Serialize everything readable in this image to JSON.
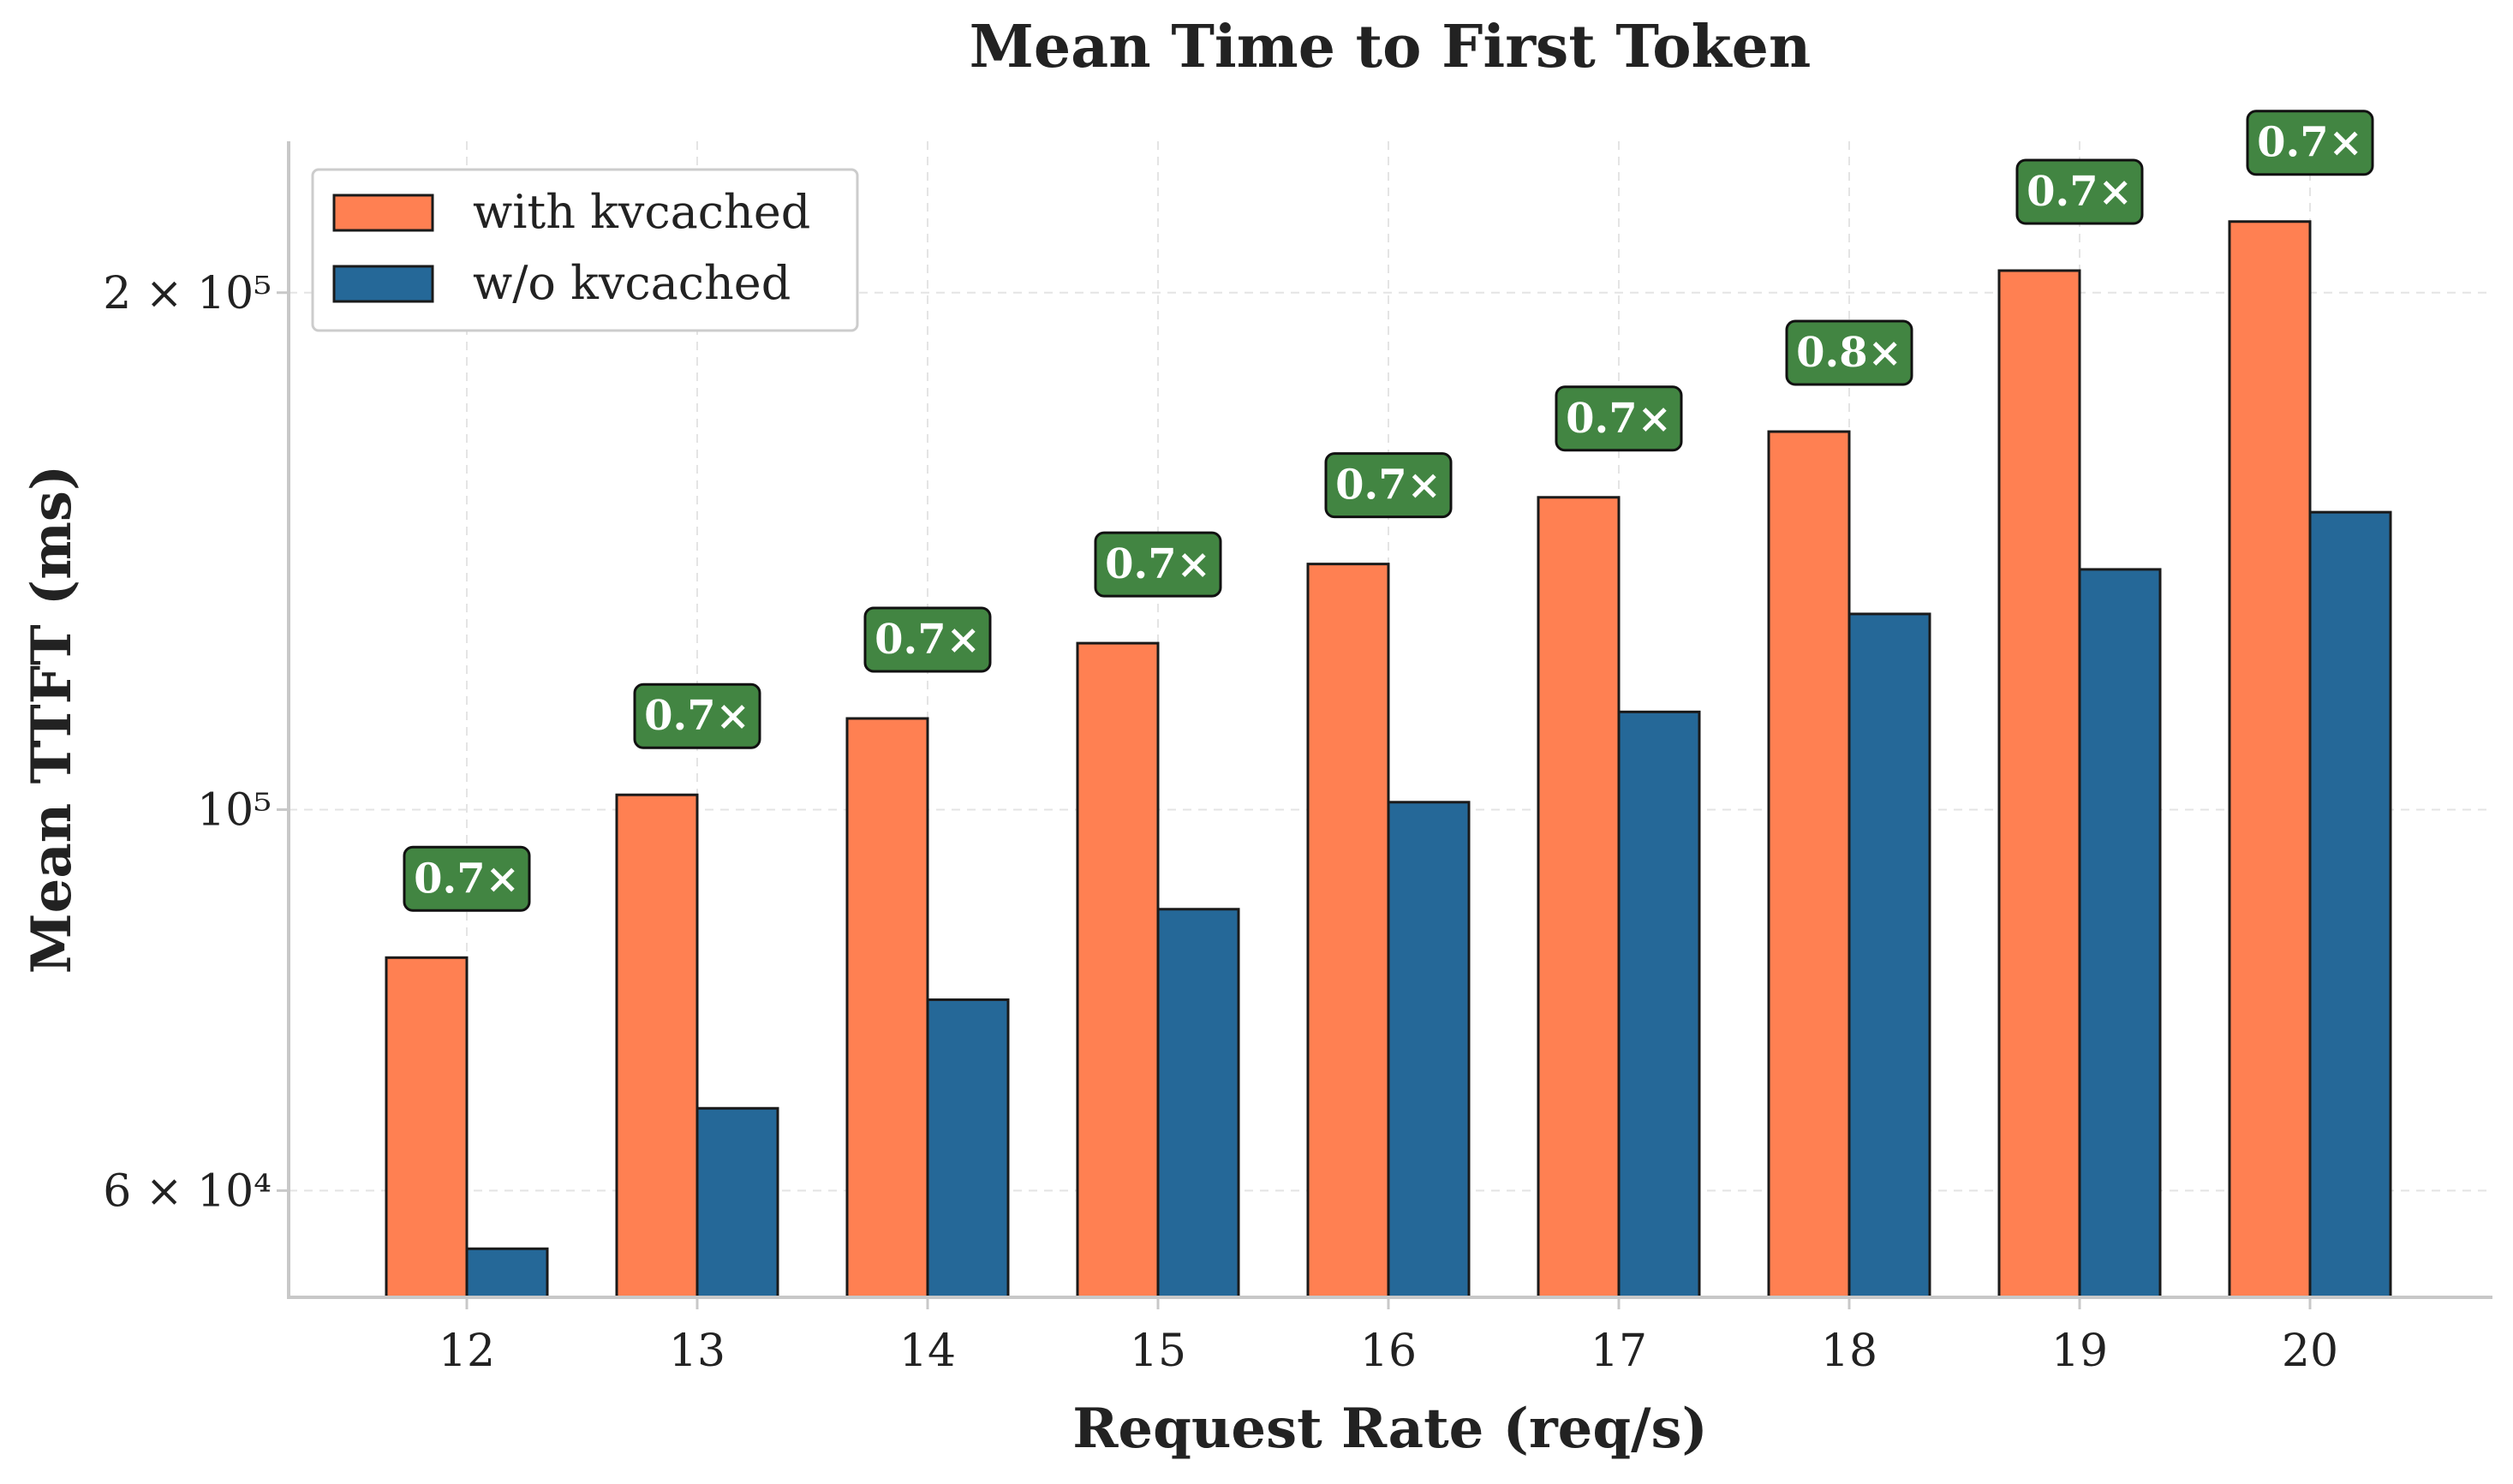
{
  "chart_data": {
    "type": "bar",
    "title": "Mean Time to First Token",
    "xlabel": "Request Rate (req/s)",
    "ylabel": "Mean TTFT (ms)",
    "yscale": "log",
    "ylim": [
      52000,
      245000
    ],
    "grid": true,
    "legend_position": "top-left",
    "categories": [
      "12",
      "13",
      "14",
      "15",
      "16",
      "17",
      "18",
      "19",
      "20"
    ],
    "series": [
      {
        "name": "with kvcached",
        "color": "#ff8052",
        "values": [
          82000,
          102000,
          113000,
          125000,
          139000,
          152000,
          166000,
          206000,
          220000
        ]
      },
      {
        "name": "w/o kvcached",
        "color": "#256898",
        "values": [
          55500,
          67000,
          77500,
          87500,
          101000,
          114000,
          130000,
          138000,
          149000
        ]
      }
    ],
    "annotations": [
      "0.7×",
      "0.7×",
      "0.7×",
      "0.7×",
      "0.7×",
      "0.7×",
      "0.8×",
      "0.7×",
      "0.7×"
    ],
    "annotation_color": "#428542",
    "yticks": [
      {
        "value": 60000,
        "label": "6 × 10⁴"
      },
      {
        "value": 100000,
        "label": "10⁵"
      },
      {
        "value": 200000,
        "label": "2 × 10⁵"
      }
    ]
  }
}
